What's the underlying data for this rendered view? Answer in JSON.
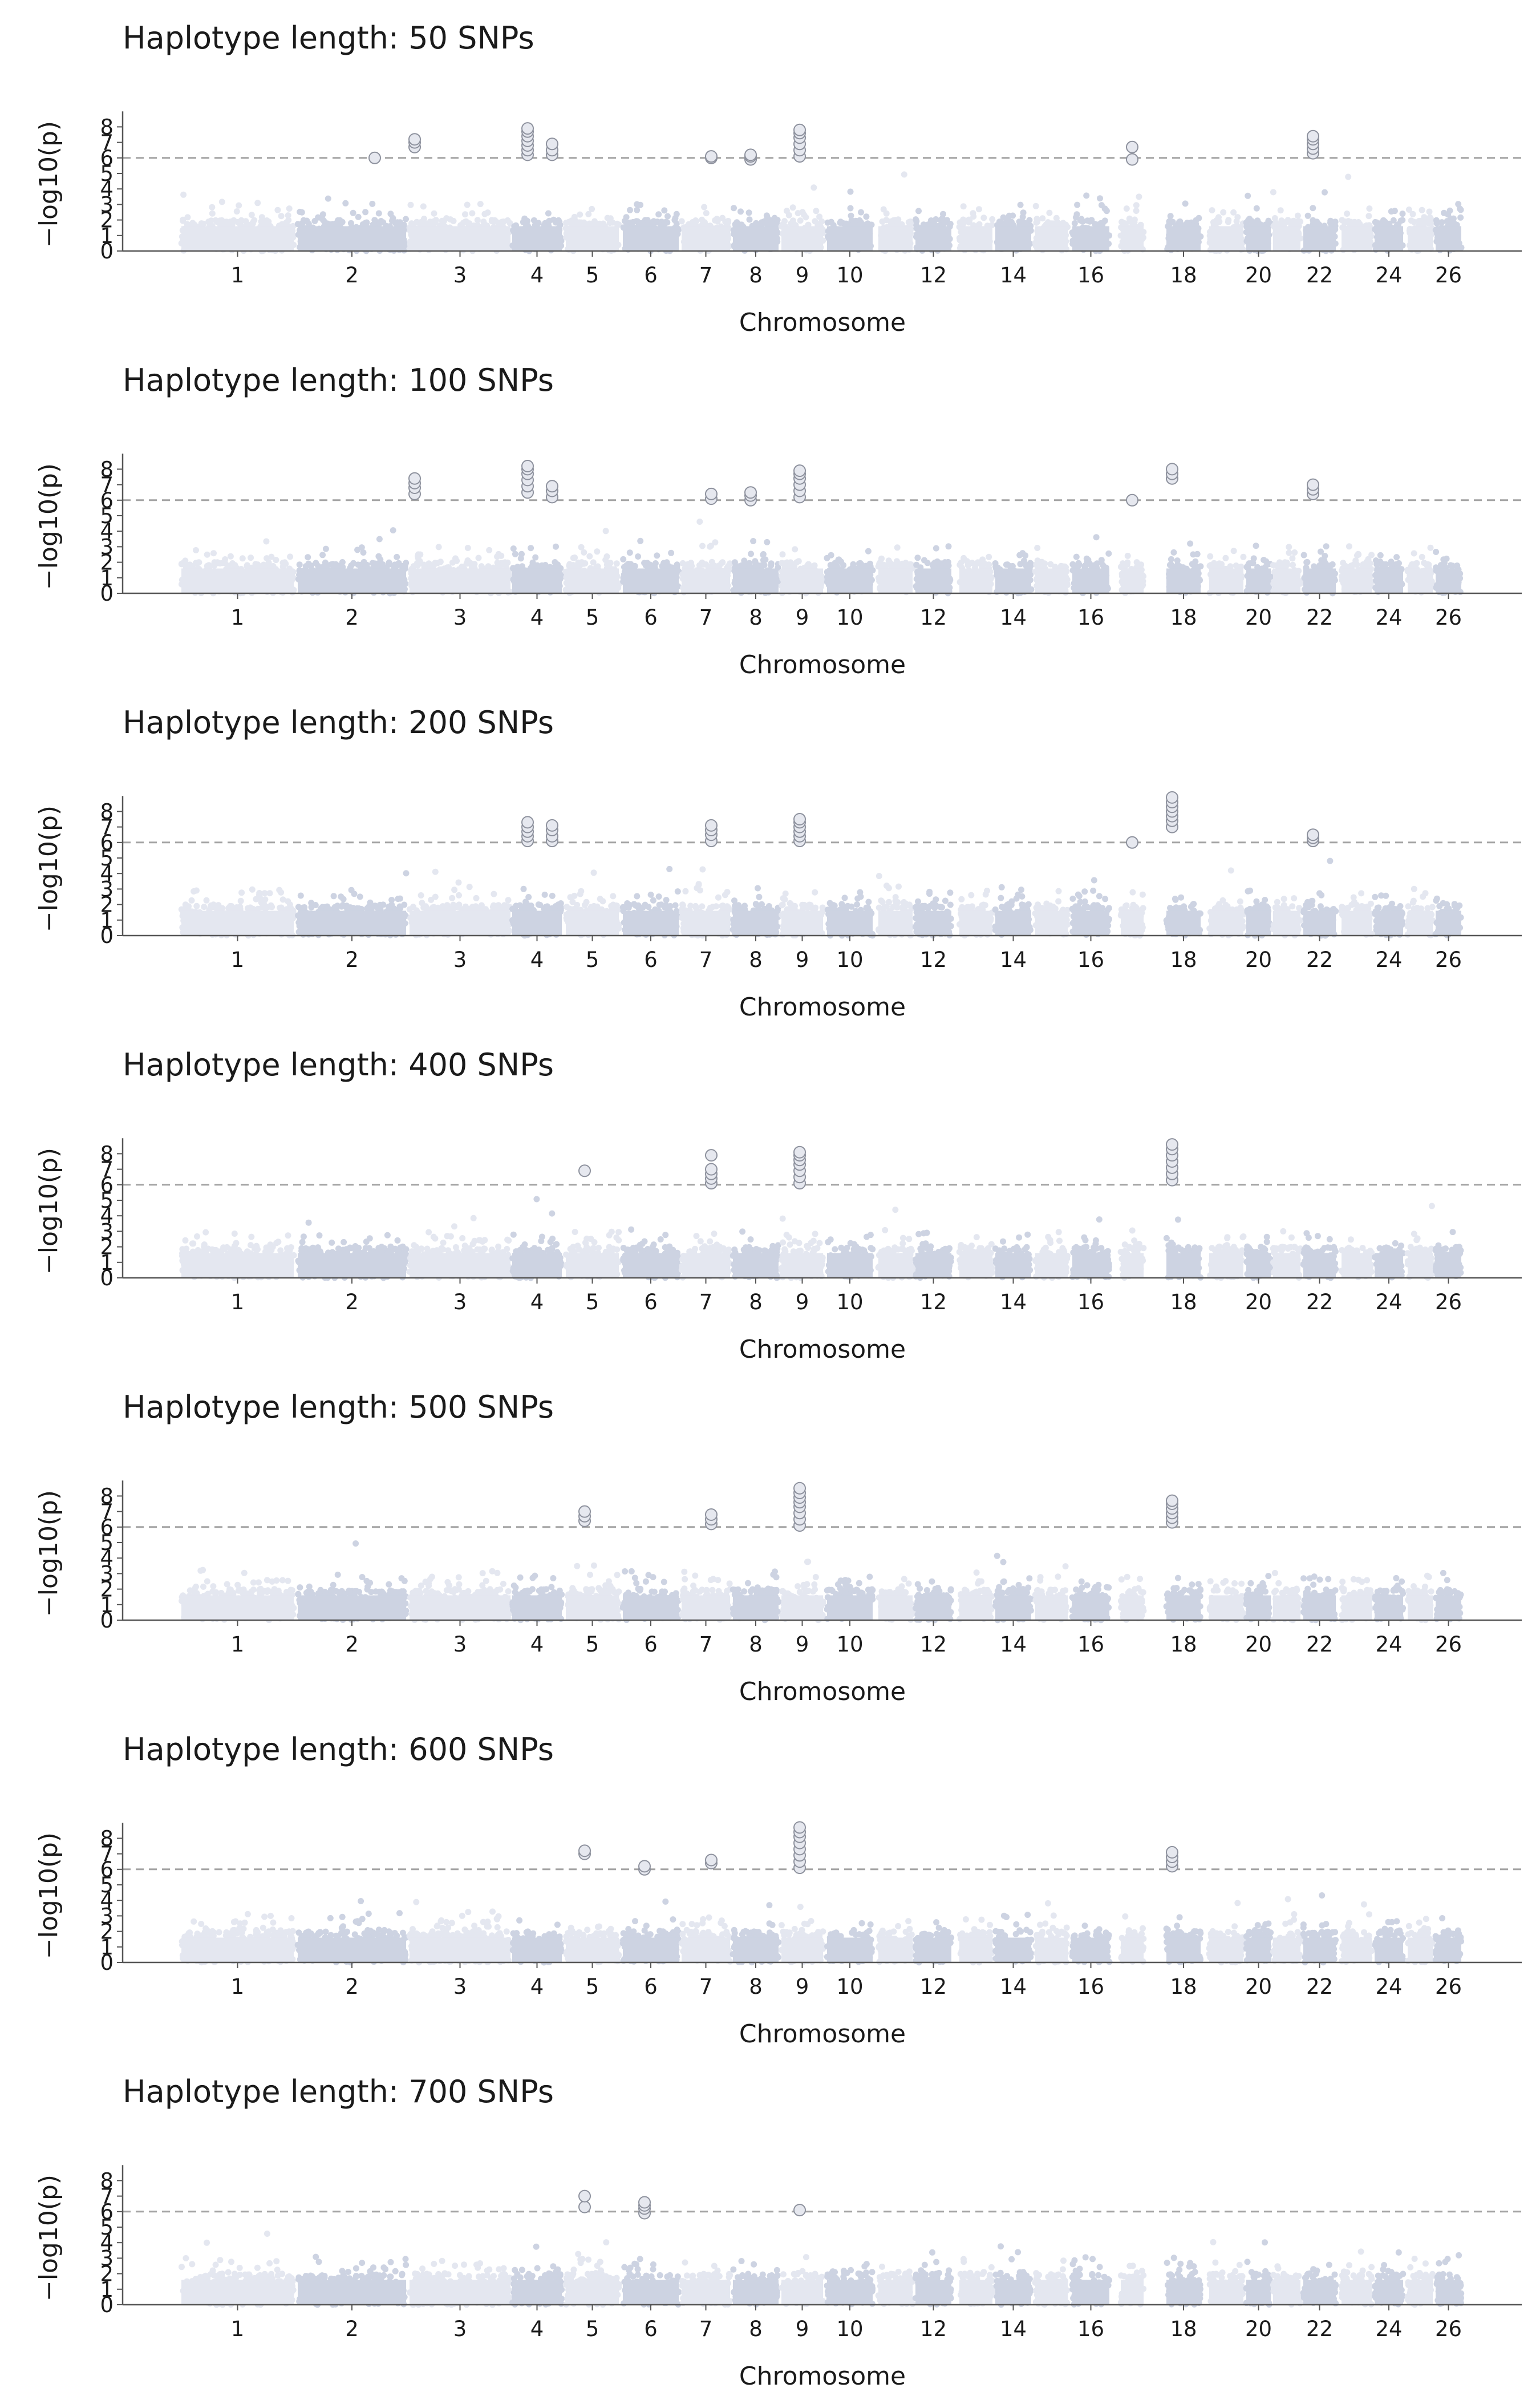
{
  "chart_data": [
    {
      "type": "scatter",
      "subtype": "manhattan",
      "title": "Haplotype length: 50 SNPs",
      "xlabel": "Chromosome",
      "ylabel": "−log10(p)",
      "ylim": [
        0,
        9
      ],
      "threshold": 6,
      "y_ticks": [
        "0",
        "1",
        "2",
        "3",
        "4",
        "5",
        "6",
        "7",
        "8"
      ],
      "x_tick_labels": [
        "1",
        "2",
        "3",
        "4",
        "5",
        "6",
        "7",
        "8",
        "9",
        "10",
        "12",
        "14",
        "16",
        "18",
        "20",
        "22",
        "24",
        "26"
      ],
      "peaks": [
        {
          "chromosome": 2,
          "values": [
            6.0
          ]
        },
        {
          "chromosome": 3,
          "values": [
            6.7,
            7.0,
            7.2
          ]
        },
        {
          "chromosome": 4,
          "values": [
            6.2,
            6.5,
            6.8,
            7.1,
            7.4,
            7.7,
            7.9
          ]
        },
        {
          "chromosome": 4,
          "values": [
            6.2,
            6.5,
            6.9
          ]
        },
        {
          "chromosome": 7,
          "values": [
            6.0,
            6.1
          ]
        },
        {
          "chromosome": 8,
          "values": [
            5.9,
            6.1,
            6.2
          ]
        },
        {
          "chromosome": 9,
          "values": [
            6.1,
            6.5,
            6.9,
            7.3,
            7.6,
            7.8
          ]
        },
        {
          "chromosome": 17,
          "values": [
            5.9,
            6.7
          ]
        },
        {
          "chromosome": 22,
          "values": [
            6.3,
            6.6,
            6.9,
            7.2,
            7.4
          ]
        }
      ]
    },
    {
      "type": "scatter",
      "subtype": "manhattan",
      "title": "Haplotype length: 100 SNPs",
      "xlabel": "Chromosome",
      "ylabel": "−log10(p)",
      "ylim": [
        0,
        9
      ],
      "threshold": 6,
      "y_ticks": [
        "0",
        "1",
        "2",
        "3",
        "4",
        "5",
        "6",
        "7",
        "8"
      ],
      "x_tick_labels": [
        "1",
        "2",
        "3",
        "4",
        "5",
        "6",
        "7",
        "8",
        "9",
        "10",
        "12",
        "14",
        "16",
        "18",
        "20",
        "22",
        "24",
        "26"
      ],
      "peaks": [
        {
          "chromosome": 3,
          "values": [
            6.4,
            6.8,
            7.1,
            7.4
          ]
        },
        {
          "chromosome": 4,
          "values": [
            6.5,
            6.9,
            7.3,
            7.7,
            8.0,
            8.2
          ]
        },
        {
          "chromosome": 4,
          "values": [
            6.2,
            6.6,
            6.9
          ]
        },
        {
          "chromosome": 7,
          "values": [
            6.1,
            6.4
          ]
        },
        {
          "chromosome": 8,
          "values": [
            6.0,
            6.3,
            6.5
          ]
        },
        {
          "chromosome": 9,
          "values": [
            6.2,
            6.6,
            7.0,
            7.4,
            7.7,
            7.9
          ]
        },
        {
          "chromosome": 17,
          "values": [
            6.0
          ]
        },
        {
          "chromosome": 18,
          "values": [
            7.4,
            7.7,
            8.0
          ]
        },
        {
          "chromosome": 22,
          "values": [
            6.4,
            6.7,
            7.0
          ]
        }
      ]
    },
    {
      "type": "scatter",
      "subtype": "manhattan",
      "title": "Haplotype length: 200 SNPs",
      "xlabel": "Chromosome",
      "ylabel": "−log10(p)",
      "ylim": [
        0,
        9
      ],
      "threshold": 6,
      "y_ticks": [
        "0",
        "1",
        "2",
        "3",
        "4",
        "5",
        "6",
        "7",
        "8"
      ],
      "x_tick_labels": [
        "1",
        "2",
        "3",
        "4",
        "5",
        "6",
        "7",
        "8",
        "9",
        "10",
        "12",
        "14",
        "16",
        "18",
        "20",
        "22",
        "24",
        "26"
      ],
      "peaks": [
        {
          "chromosome": 4,
          "values": [
            6.1,
            6.4,
            6.7,
            7.0,
            7.3
          ]
        },
        {
          "chromosome": 4,
          "values": [
            6.1,
            6.4,
            6.8,
            7.1
          ]
        },
        {
          "chromosome": 7,
          "values": [
            6.1,
            6.5,
            6.8,
            7.1
          ]
        },
        {
          "chromosome": 9,
          "values": [
            6.1,
            6.4,
            6.7,
            7.0,
            7.3,
            7.5
          ]
        },
        {
          "chromosome": 17,
          "values": [
            6.0
          ]
        },
        {
          "chromosome": 18,
          "values": [
            7.0,
            7.4,
            7.7,
            8.0,
            8.3,
            8.6,
            8.9
          ]
        },
        {
          "chromosome": 22,
          "values": [
            6.1,
            6.3,
            6.5
          ]
        }
      ]
    },
    {
      "type": "scatter",
      "subtype": "manhattan",
      "title": "Haplotype length: 400 SNPs",
      "xlabel": "Chromosome",
      "ylabel": "−log10(p)",
      "ylim": [
        0,
        9
      ],
      "threshold": 6,
      "y_ticks": [
        "0",
        "1",
        "2",
        "3",
        "4",
        "5",
        "6",
        "7",
        "8"
      ],
      "x_tick_labels": [
        "1",
        "2",
        "3",
        "4",
        "5",
        "6",
        "7",
        "8",
        "9",
        "10",
        "12",
        "14",
        "16",
        "18",
        "20",
        "22",
        "24",
        "26"
      ],
      "peaks": [
        {
          "chromosome": 5,
          "values": [
            6.9
          ]
        },
        {
          "chromosome": 7,
          "values": [
            6.1,
            6.4,
            6.7,
            7.0,
            7.9
          ]
        },
        {
          "chromosome": 9,
          "values": [
            6.1,
            6.5,
            6.9,
            7.3,
            7.6,
            7.9,
            8.1
          ]
        },
        {
          "chromosome": 18,
          "values": [
            6.3,
            6.7,
            7.1,
            7.5,
            7.9,
            8.3,
            8.6
          ]
        }
      ]
    },
    {
      "type": "scatter",
      "subtype": "manhattan",
      "title": "Haplotype length: 500 SNPs",
      "xlabel": "Chromosome",
      "ylabel": "−log10(p)",
      "ylim": [
        0,
        9
      ],
      "threshold": 6,
      "y_ticks": [
        "0",
        "1",
        "2",
        "3",
        "4",
        "5",
        "6",
        "7",
        "8"
      ],
      "x_tick_labels": [
        "1",
        "2",
        "3",
        "4",
        "5",
        "6",
        "7",
        "8",
        "9",
        "10",
        "12",
        "14",
        "16",
        "18",
        "20",
        "22",
        "24",
        "26"
      ],
      "peaks": [
        {
          "chromosome": 5,
          "values": [
            6.4,
            6.7,
            7.0
          ]
        },
        {
          "chromosome": 7,
          "values": [
            6.2,
            6.5,
            6.8
          ]
        },
        {
          "chromosome": 9,
          "values": [
            6.1,
            6.5,
            6.9,
            7.3,
            7.6,
            7.9,
            8.2,
            8.5
          ]
        },
        {
          "chromosome": 18,
          "values": [
            6.3,
            6.6,
            6.9,
            7.2,
            7.5,
            7.7
          ]
        }
      ]
    },
    {
      "type": "scatter",
      "subtype": "manhattan",
      "title": "Haplotype length: 600 SNPs",
      "xlabel": "Chromosome",
      "ylabel": "−log10(p)",
      "ylim": [
        0,
        9
      ],
      "threshold": 6,
      "y_ticks": [
        "0",
        "1",
        "2",
        "3",
        "4",
        "5",
        "6",
        "7",
        "8"
      ],
      "x_tick_labels": [
        "1",
        "2",
        "3",
        "4",
        "5",
        "6",
        "7",
        "8",
        "9",
        "10",
        "12",
        "14",
        "16",
        "18",
        "20",
        "22",
        "24",
        "26"
      ],
      "peaks": [
        {
          "chromosome": 5,
          "values": [
            7.0,
            7.2
          ]
        },
        {
          "chromosome": 6,
          "values": [
            6.0,
            6.2
          ]
        },
        {
          "chromosome": 7,
          "values": [
            6.4,
            6.6
          ]
        },
        {
          "chromosome": 9,
          "values": [
            6.1,
            6.5,
            6.9,
            7.3,
            7.7,
            8.1,
            8.4,
            8.7
          ]
        },
        {
          "chromosome": 18,
          "values": [
            6.2,
            6.5,
            6.8,
            7.1
          ]
        }
      ]
    },
    {
      "type": "scatter",
      "subtype": "manhattan",
      "title": "Haplotype length: 700 SNPs",
      "xlabel": "Chromosome",
      "ylabel": "−log10(p)",
      "ylim": [
        0,
        9
      ],
      "threshold": 6,
      "y_ticks": [
        "0",
        "1",
        "2",
        "3",
        "4",
        "5",
        "6",
        "7",
        "8"
      ],
      "x_tick_labels": [
        "1",
        "2",
        "3",
        "4",
        "5",
        "6",
        "7",
        "8",
        "9",
        "10",
        "12",
        "14",
        "16",
        "18",
        "20",
        "22",
        "24",
        "26"
      ],
      "peaks": [
        {
          "chromosome": 5,
          "values": [
            6.3,
            7.0
          ]
        },
        {
          "chromosome": 6,
          "values": [
            5.9,
            6.2,
            6.4,
            6.6
          ]
        },
        {
          "chromosome": 9,
          "values": [
            6.1
          ]
        }
      ]
    }
  ],
  "colors": {
    "light": "#e4e7f0",
    "dark": "#cdd3e2",
    "peak_fill": "#e6e8ef",
    "peak_stroke": "#8d919d",
    "threshold": "#a3a3a3",
    "axis": "#555555"
  }
}
